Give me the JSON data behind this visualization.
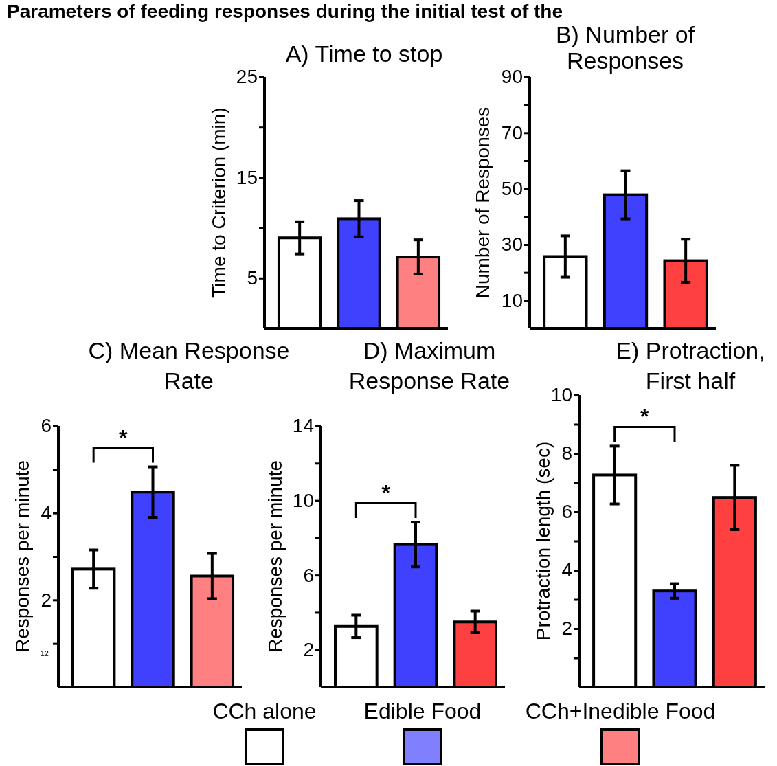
{
  "chart_data": [
    {
      "type": "bar",
      "title": "Parameters of feeding responses during the initial test of the",
      "subtitle": "A) Time to stop",
      "ylabel": "Time to Criterion (min)",
      "categories": [
        null,
        null,
        null
      ],
      "values": [
        9.0,
        10.9,
        7.1
      ],
      "errors": [
        1.6,
        1.8,
        1.7
      ],
      "colors": [
        "#ffffff",
        "#4040ff",
        "#ff8080"
      ],
      "ylim": [
        0,
        25
      ],
      "yticks": [
        5,
        {
          "value": 10,
          "label": null
        },
        15,
        {
          "value": 20,
          "label": null
        },
        25
      ]
    },
    {
      "type": "bar",
      "title": "B) Number of Responses",
      "ylabel": "Number of Responses",
      "categories": [
        null,
        null,
        null
      ],
      "values": [
        25.7,
        47.8,
        24.2
      ],
      "errors": [
        7.4,
        8.6,
        7.7
      ],
      "colors": [
        "#ffffff",
        "#4040ff",
        "#ff4040"
      ],
      "ylim": [
        0,
        90
      ],
      "yticks": [
        10,
        {
          "value": 20,
          "label": null
        },
        30,
        {
          "value": 40,
          "label": null
        },
        50,
        {
          "value": 60,
          "label": null
        },
        70,
        {
          "value": 80,
          "label": null
        },
        90
      ]
    },
    {
      "type": "bar",
      "title": "C) Mean Response Rate",
      "ylabel": "Responses per minute",
      "categories": [
        null,
        null,
        null
      ],
      "values": [
        2.71,
        4.48,
        2.55
      ],
      "errors": [
        0.44,
        0.58,
        0.52
      ],
      "colors": [
        "#ffffff",
        "#4040ff",
        "#ff8080"
      ],
      "ylim": [
        0,
        6
      ],
      "yticks": [
        {
          "value": 1,
          "label": null
        },
        2,
        {
          "value": 3,
          "label": null
        },
        4,
        {
          "value": 5,
          "label": null
        },
        6
      ],
      "annotations": [
        "*",
        "12"
      ]
    },
    {
      "type": "bar",
      "title": "D) Maximum Response Rate",
      "ylabel": "Responses per minute",
      "categories": [
        null,
        null,
        null
      ],
      "values": [
        3.25,
        7.64,
        3.49
      ],
      "errors": [
        0.6,
        1.2,
        0.58
      ],
      "colors": [
        "#ffffff",
        "#4040ff",
        "#ff4040"
      ],
      "ylim": [
        0,
        14
      ],
      "yticks": [
        2,
        {
          "value": 4,
          "label": null
        },
        6,
        {
          "value": 8,
          "label": null
        },
        10,
        {
          "value": 12,
          "label": null
        },
        14
      ],
      "annotations": [
        "*"
      ]
    },
    {
      "type": "bar",
      "title": "E) Protraction, First half",
      "ylabel": "Protraction length (sec)",
      "categories": [
        null,
        null,
        null
      ],
      "values": [
        7.26,
        3.29,
        6.49
      ],
      "errors": [
        0.99,
        0.25,
        1.1
      ],
      "colors": [
        "#ffffff",
        "#4040ff",
        "#ff4040"
      ],
      "ylim": [
        0,
        10
      ],
      "yticks": [
        {
          "value": 1,
          "label": null
        },
        2,
        {
          "value": 3,
          "label": null
        },
        4,
        {
          "value": 5,
          "label": null
        },
        6,
        {
          "value": 7,
          "label": null
        },
        8,
        {
          "value": 9,
          "label": null
        },
        10
      ],
      "annotations": [
        "*"
      ]
    },
    {
      "type": "other",
      "categories": [
        "CCh alone",
        "Edible Food",
        "CCh+Inedible Food"
      ],
      "colors": [
        "#ffffff",
        "#8080ff",
        "#ff8080"
      ]
    }
  ]
}
